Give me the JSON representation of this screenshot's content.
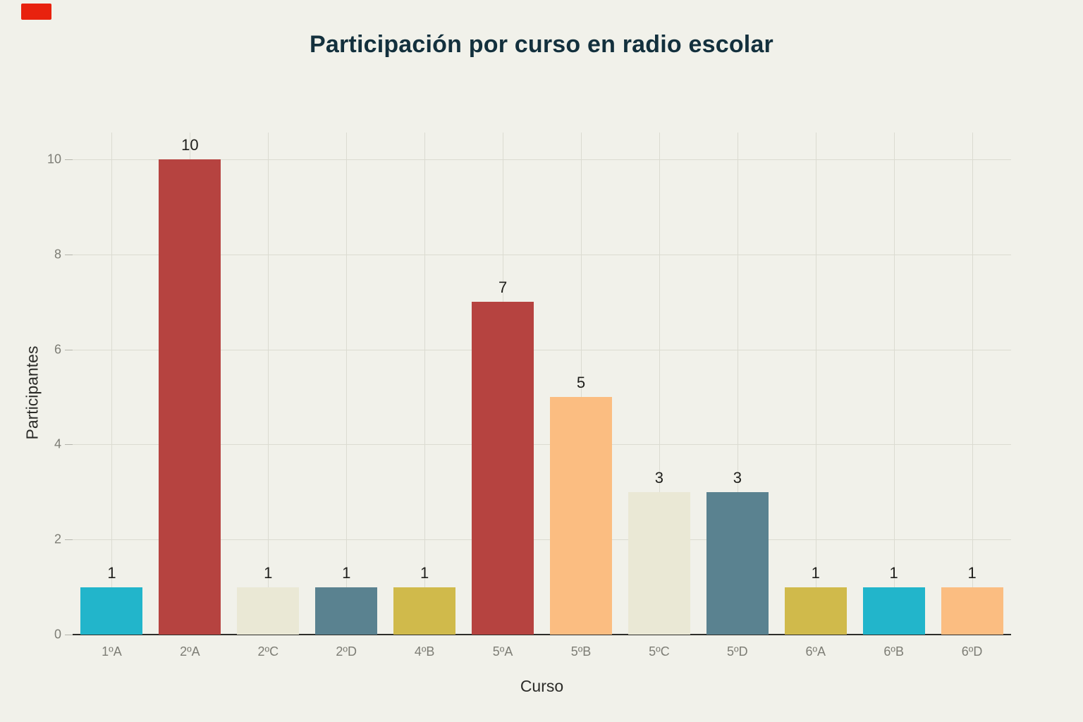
{
  "chart_data": {
    "type": "bar",
    "title": "Participación por curso en radio escolar",
    "xlabel": "Curso",
    "ylabel": "Participantes",
    "categories": [
      "1ºA",
      "2ºA",
      "2ºC",
      "2ºD",
      "4ºB",
      "5ºA",
      "5ºB",
      "5ºC",
      "5ºD",
      "6ºA",
      "6ºB",
      "6ºD"
    ],
    "values": [
      1,
      10,
      1,
      1,
      1,
      7,
      5,
      3,
      3,
      1,
      1,
      1
    ],
    "bar_colors": [
      "#22b5cb",
      "#b64340",
      "#eae8d5",
      "#5a8290",
      "#d0ba4b",
      "#b64340",
      "#fbbd81",
      "#eae8d5",
      "#5a8290",
      "#d0ba4b",
      "#22b5cb",
      "#fbbd81"
    ],
    "yticks": [
      0,
      2,
      4,
      6,
      8,
      10
    ],
    "ylim": [
      0,
      10.56
    ],
    "grid": "horizontal-and-vertical",
    "legend": "none",
    "value_labels_shown": true
  },
  "theme": {
    "background": "#f1f1ea",
    "title_color": "#13303d",
    "grid_color": "#dbdbd1",
    "axis_line_color": "#2e2e2a",
    "tick_text_color": "#7d7d75",
    "value_label_color": "#1e1e1b",
    "axis_title_color": "#2b2b28",
    "red_marker_color": "#e8220e"
  }
}
